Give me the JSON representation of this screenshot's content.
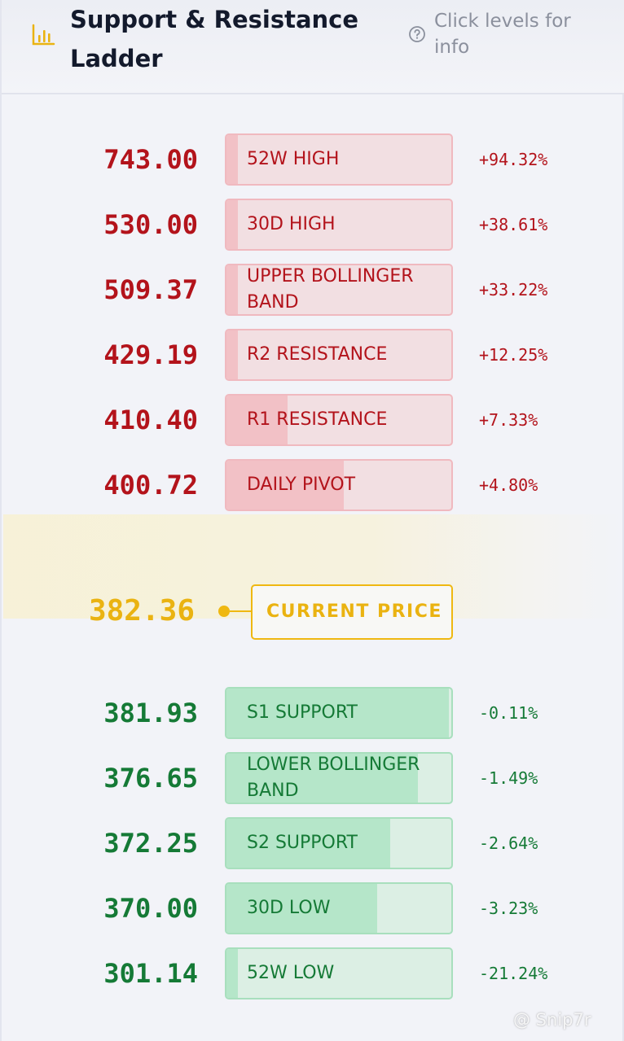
{
  "header": {
    "title": "Support & Resistance Ladder",
    "help_text": "Click levels for info",
    "icon": "bar-chart-icon",
    "help_icon": "question-circle-icon"
  },
  "colors": {
    "resistance": "#b3131b",
    "support": "#157a36",
    "current": "#eab311"
  },
  "resistance_levels": [
    {
      "price": "743.00",
      "label": "52W HIGH",
      "change": "+94.32%",
      "strength": 0.05
    },
    {
      "price": "530.00",
      "label": "30D HIGH",
      "change": "+38.61%",
      "strength": 0.05
    },
    {
      "price": "509.37",
      "label": "UPPER BOLLINGER BAND",
      "change": "+33.22%",
      "strength": 0.05
    },
    {
      "price": "429.19",
      "label": "R2 RESISTANCE",
      "change": "+12.25%",
      "strength": 0.05
    },
    {
      "price": "410.40",
      "label": "R1 RESISTANCE",
      "change": "+7.33%",
      "strength": 0.27
    },
    {
      "price": "400.72",
      "label": "DAILY PIVOT",
      "change": "+4.80%",
      "strength": 0.52
    }
  ],
  "current": {
    "price": "382.36",
    "label": "CURRENT PRICE"
  },
  "support_levels": [
    {
      "price": "381.93",
      "label": "S1 SUPPORT",
      "change": "-0.11%",
      "strength": 0.99
    },
    {
      "price": "376.65",
      "label": "LOWER BOLLINGER BAND",
      "change": "-1.49%",
      "strength": 0.85
    },
    {
      "price": "372.25",
      "label": "S2 SUPPORT",
      "change": "-2.64%",
      "strength": 0.73
    },
    {
      "price": "370.00",
      "label": "30D LOW",
      "change": "-3.23%",
      "strength": 0.67
    },
    {
      "price": "301.14",
      "label": "52W LOW",
      "change": "-21.24%",
      "strength": 0.05
    }
  ],
  "watermark": "@ Snip7r"
}
